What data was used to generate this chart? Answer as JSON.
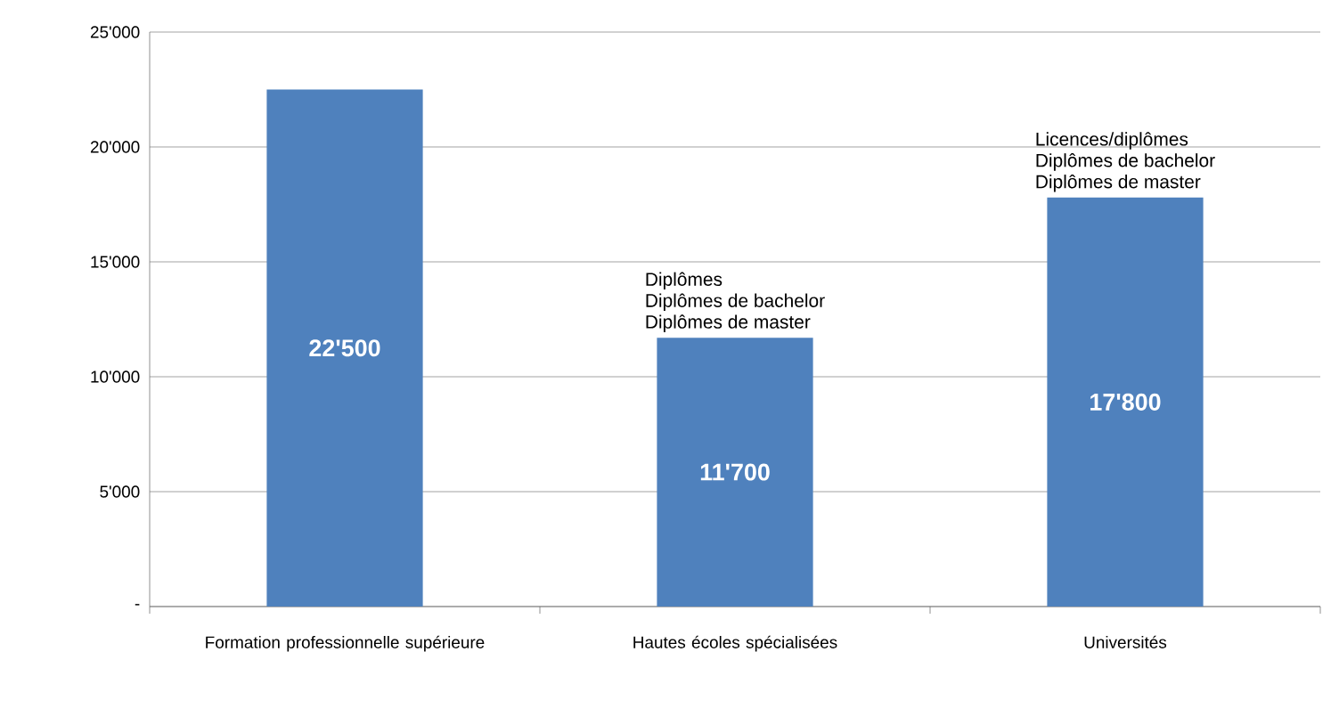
{
  "chart_data": {
    "type": "bar",
    "categories": [
      "Formation professionnelle supérieure",
      "Hautes écoles spécialisées",
      "Universités"
    ],
    "values": [
      22500,
      11700,
      17800
    ],
    "value_labels": [
      "22'500",
      "11'700",
      "17'800"
    ],
    "color": "#4f81bd",
    "ylim": [
      0,
      25000
    ],
    "yticks": [
      {
        "value": 0,
        "label": "-"
      },
      {
        "value": 5000,
        "label": "5'000"
      },
      {
        "value": 10000,
        "label": "10'000"
      },
      {
        "value": 15000,
        "label": "15'000"
      },
      {
        "value": 20000,
        "label": "20'000"
      },
      {
        "value": 25000,
        "label": "25'000"
      }
    ],
    "grid": "y",
    "annotations": [
      {
        "text": "Diplômes",
        "x": "Hautes écoles spécialisées",
        "y": 11700
      },
      {
        "text": "Diplômes de bachelor",
        "x": "Hautes écoles spécialisées",
        "y": 11700
      },
      {
        "text": "Diplômes de master",
        "x": "Hautes écoles spécialisées",
        "y": 11700
      },
      {
        "text": "Licences/diplômes",
        "x": "Universités",
        "y": 17800
      },
      {
        "text": "Diplômes de bachelor",
        "x": "Universités",
        "y": 17800
      },
      {
        "text": "Diplômes de master",
        "x": "Universités",
        "y": 17800
      }
    ]
  }
}
